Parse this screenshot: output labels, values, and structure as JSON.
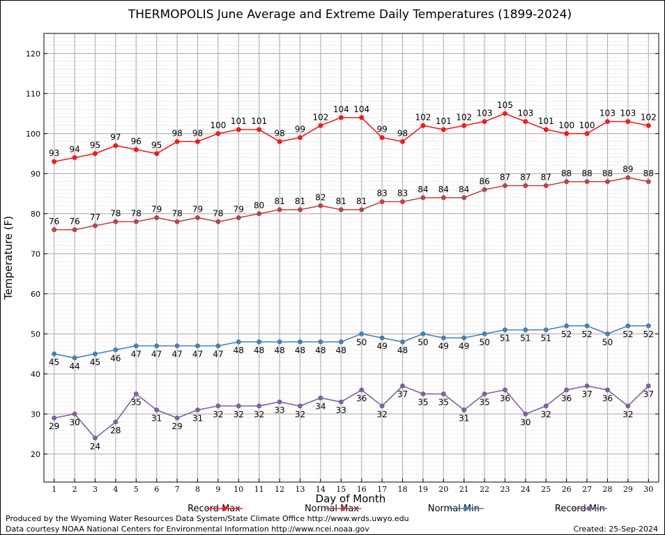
{
  "chart_data": {
    "type": "line",
    "title": "THERMOPOLIS June Average and Extreme Daily Temperatures (1899-2024)",
    "xlabel": "Day of Month",
    "ylabel": "Temperature (F)",
    "x": [
      1,
      2,
      3,
      4,
      5,
      6,
      7,
      8,
      9,
      10,
      11,
      12,
      13,
      14,
      15,
      16,
      17,
      18,
      19,
      20,
      21,
      22,
      23,
      24,
      25,
      26,
      27,
      28,
      29,
      30
    ],
    "xlim": [
      0.5,
      30.5
    ],
    "ylim": [
      13,
      125
    ],
    "yticks": [
      20,
      30,
      40,
      50,
      60,
      70,
      80,
      90,
      100,
      110,
      120
    ],
    "grid": true,
    "legend": "bottom",
    "series": [
      {
        "name": "Record Max",
        "color": "#ee1c1c",
        "label_pos": "above",
        "values": [
          93,
          94,
          95,
          97,
          96,
          95,
          98,
          98,
          100,
          101,
          101,
          98,
          99,
          102,
          104,
          104,
          99,
          98,
          102,
          101,
          102,
          103,
          105,
          103,
          101,
          100,
          100,
          103,
          103,
          102
        ]
      },
      {
        "name": "Normal Max",
        "color": "#bb4444",
        "label_pos": "above",
        "values": [
          76,
          76,
          77,
          78,
          78,
          79,
          78,
          79,
          78,
          79,
          80,
          81,
          81,
          82,
          81,
          81,
          83,
          83,
          84,
          84,
          84,
          86,
          87,
          87,
          87,
          88,
          88,
          88,
          89,
          88
        ]
      },
      {
        "name": "Normal Min",
        "color": "#4a7fb0",
        "label_pos": "below",
        "values": [
          45,
          44,
          45,
          46,
          47,
          47,
          47,
          47,
          47,
          48,
          48,
          48,
          48,
          48,
          48,
          50,
          49,
          48,
          50,
          49,
          49,
          50,
          51,
          51,
          51,
          52,
          52,
          50,
          52,
          52
        ]
      },
      {
        "name": "Record Min",
        "color": "#8060a0",
        "label_pos": "below",
        "values": [
          29,
          30,
          24,
          28,
          35,
          31,
          29,
          31,
          32,
          32,
          32,
          33,
          32,
          34,
          33,
          36,
          32,
          37,
          35,
          35,
          31,
          35,
          36,
          30,
          32,
          36,
          37,
          36,
          32,
          37
        ]
      }
    ]
  },
  "footer": {
    "line1": "Produced by the Wyoming Water Resources Data System/State Climate Office http://www.wrds.uwyo.edu",
    "line2": "Data courtesy NOAA National Centers for Environmental Information http://www.ncei.noaa.gov",
    "created": "Created:  25-Sep-2024"
  }
}
